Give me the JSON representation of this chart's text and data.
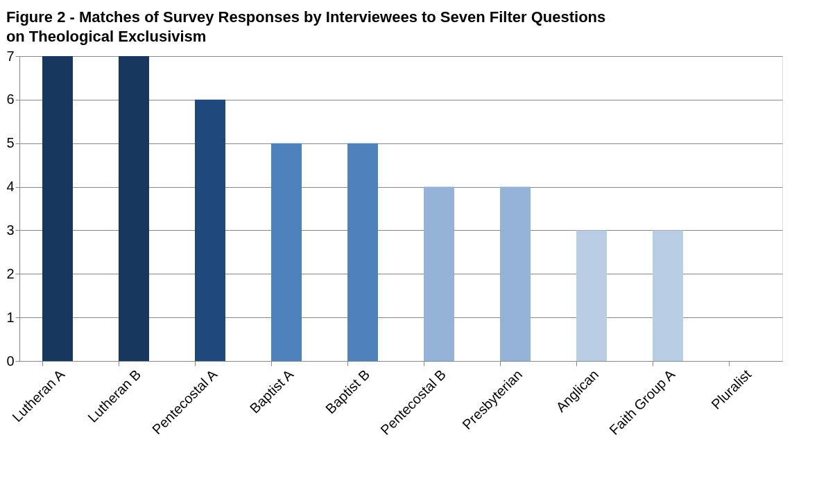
{
  "chart_data": {
    "type": "bar",
    "title": "Figure 2 - Matches of Survey Responses  by Interviewees to Seven Filter Questions\non Theological Exclusivism",
    "categories": [
      "Lutheran A",
      "Lutheran B",
      "Pentecostal A",
      "Baptist A",
      "Baptist B",
      "Pentecostal B",
      "Presbyterian",
      "Anglican",
      "Faith Group A",
      "Pluralist"
    ],
    "values": [
      7,
      7,
      6,
      5,
      5,
      4,
      4,
      3,
      3,
      0
    ],
    "colors": [
      "#17375e",
      "#17375e",
      "#1f497d",
      "#4f81bd",
      "#4f81bd",
      "#95b3d7",
      "#95b3d7",
      "#b9cde5",
      "#b9cde5",
      "#b9cde5"
    ],
    "ylim": [
      0,
      7
    ],
    "yticks": [
      0,
      1,
      2,
      3,
      4,
      5,
      6,
      7
    ],
    "grid": "y",
    "legend": false
  }
}
